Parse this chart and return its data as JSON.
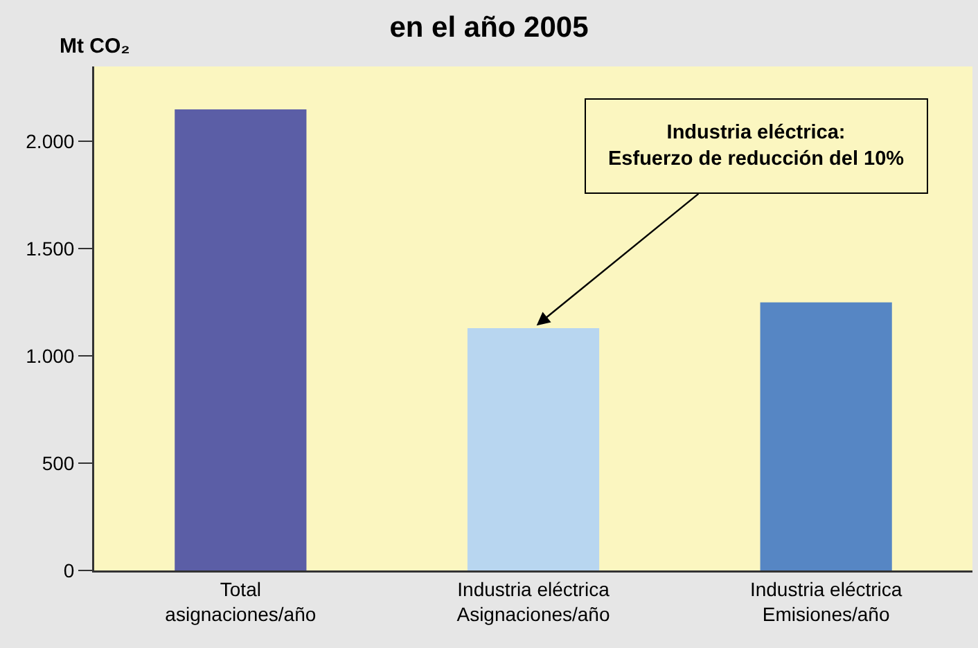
{
  "chart_data": {
    "type": "bar",
    "title": "en el año 2005",
    "ylabel": "Mt CO₂",
    "categories": [
      "Total\nasignaciones/año",
      "Industria eléctrica\nAsignaciones/año",
      "Industria eléctrica\nEmisiones/año"
    ],
    "values": [
      2150,
      1130,
      1250
    ],
    "colors": [
      "#5b5ea6",
      "#b8d6f0",
      "#5686c4"
    ],
    "ylim": [
      0,
      2350
    ],
    "yticks": [
      0,
      500,
      {
        "value": 1000,
        "label": "1.000"
      },
      {
        "value": 1500,
        "label": "1.500"
      },
      {
        "value": 2000,
        "label": "2.000"
      }
    ],
    "annotations": [
      {
        "text": "Industria eléctrica:\nEsfuerzo de reducción del 10%",
        "x": "Industria eléctrica\nAsignaciones/año",
        "y": 1130
      }
    ]
  }
}
